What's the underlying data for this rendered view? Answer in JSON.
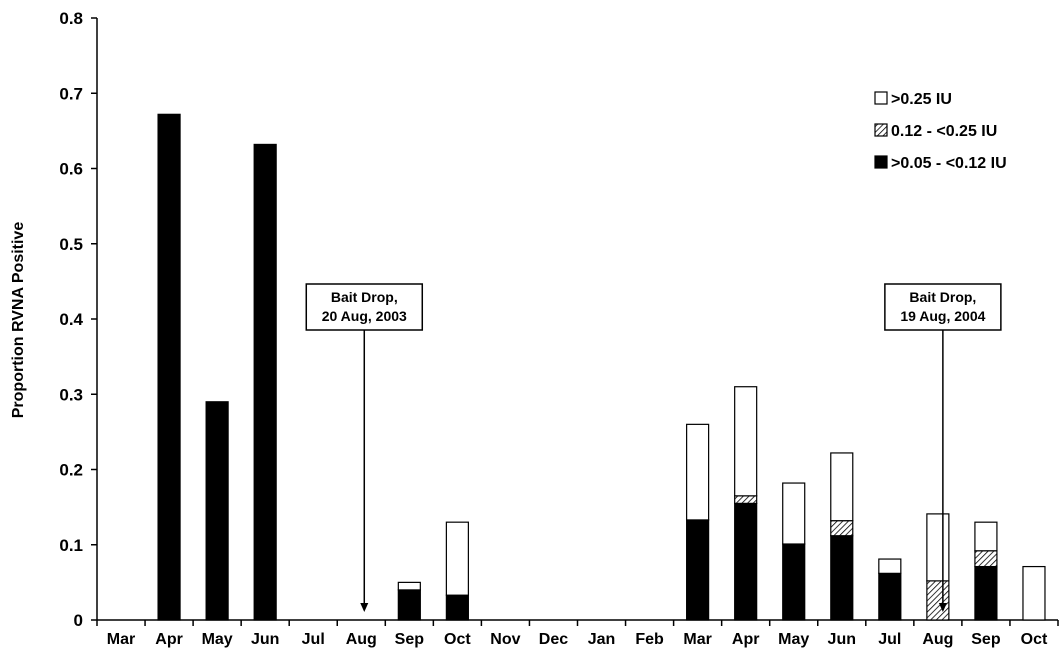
{
  "chart_data": {
    "type": "bar",
    "stacked": true,
    "title": "",
    "xlabel": "",
    "ylabel": "Proportion RVNA Positive",
    "ylim": [
      0,
      0.8
    ],
    "yticks": [
      "0",
      "0.1",
      "0.2",
      "0.3",
      "0.4",
      "0.5",
      "0.6",
      "0.7",
      "0.8"
    ],
    "grid": false,
    "legend_position": "top-right",
    "categories": [
      "Mar",
      "Apr",
      "May",
      "Jun",
      "Jul",
      "Aug",
      "Sep",
      "Oct",
      "Nov",
      "Dec",
      "Jan",
      "Feb",
      "Mar",
      "Apr",
      "May",
      "Jun",
      "Jul",
      "Aug",
      "Sep",
      "Oct"
    ],
    "series": [
      {
        "name": ">0.05 - <0.12 IU",
        "fill": "#000000",
        "values": [
          0,
          0.672,
          0.29,
          0.632,
          0,
          0,
          0.04,
          0.033,
          0,
          0,
          0,
          0,
          0.133,
          0.155,
          0.101,
          0.112,
          0.062,
          0,
          0.071,
          0
        ]
      },
      {
        "name": "0.12 - <0.25 IU",
        "fill": "hatch",
        "values": [
          0,
          0,
          0,
          0,
          0,
          0,
          0,
          0,
          0,
          0,
          0,
          0,
          0,
          0.01,
          0,
          0.02,
          0,
          0.052,
          0.021,
          0
        ]
      },
      {
        "name": ">0.25 IU",
        "fill": "#ffffff",
        "values": [
          0,
          0,
          0,
          0,
          0,
          0,
          0.01,
          0.097,
          0,
          0,
          0,
          0,
          0.127,
          0.145,
          0.081,
          0.09,
          0.019,
          0.089,
          0.038,
          0.071
        ]
      }
    ],
    "annotations": [
      {
        "lines": [
          "Bait Drop,",
          "20 Aug, 2003"
        ],
        "category_index": 5
      },
      {
        "lines": [
          "Bait Drop,",
          "19 Aug, 2004"
        ],
        "category_index": 17
      }
    ]
  }
}
